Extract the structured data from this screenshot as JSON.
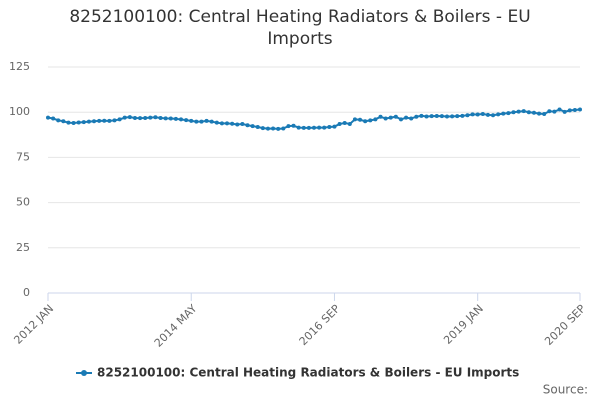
{
  "chart_data": {
    "type": "line",
    "title": "8252100100: Central Heating Radiators & Boilers - EU Imports",
    "source": "Source:",
    "categories": [
      "2012 JAN",
      null,
      null,
      null,
      null,
      null,
      null,
      null,
      null,
      null,
      null,
      null,
      null,
      null,
      null,
      null,
      null,
      null,
      null,
      null,
      null,
      null,
      null,
      null,
      null,
      null,
      null,
      null,
      "2014 MAY",
      null,
      null,
      null,
      null,
      null,
      null,
      null,
      null,
      null,
      null,
      null,
      null,
      null,
      null,
      null,
      null,
      null,
      null,
      null,
      null,
      null,
      null,
      null,
      null,
      null,
      null,
      null,
      "2016 SEP",
      null,
      null,
      null,
      null,
      null,
      null,
      null,
      null,
      null,
      null,
      null,
      null,
      null,
      null,
      null,
      null,
      null,
      null,
      null,
      null,
      null,
      null,
      null,
      null,
      null,
      null,
      null,
      "2019 JAN",
      null,
      null,
      null,
      null,
      null,
      null,
      null,
      null,
      null,
      null,
      null,
      null,
      null,
      null,
      null,
      null,
      null,
      null,
      null,
      "2020 SEP"
    ],
    "series": [
      {
        "name": "8252100100: Central Heating Radiators & Boilers - EU Imports",
        "color": "#1a7ab5",
        "values": [
          97,
          96.5,
          95.5,
          95,
          94.2,
          94,
          94.3,
          94.5,
          94.8,
          95,
          95.2,
          95.3,
          95.2,
          95.5,
          96,
          97,
          97.3,
          96.8,
          96.7,
          96.8,
          97,
          97.2,
          96.8,
          96.6,
          96.5,
          96.3,
          96,
          95.6,
          95.2,
          94.8,
          94.8,
          95.2,
          94.8,
          94.2,
          93.8,
          93.8,
          93.6,
          93.2,
          93.5,
          92.8,
          92.3,
          91.8,
          91.2,
          90.9,
          91,
          90.8,
          91,
          92.3,
          92.5,
          91.5,
          91.3,
          91.3,
          91.4,
          91.5,
          91.5,
          91.8,
          92,
          93.5,
          94,
          93.5,
          96,
          95.8,
          95,
          95.5,
          96,
          97.5,
          96.5,
          97,
          97.5,
          96,
          97,
          96.5,
          97.5,
          98,
          97.6,
          97.8,
          97.9,
          97.8,
          97.6,
          97.7,
          97.8,
          98,
          98.3,
          98.8,
          98.7,
          99,
          98.5,
          98.3,
          98.8,
          99.2,
          99.5,
          100,
          100.3,
          100.6,
          100,
          99.7,
          99.2,
          99,
          100.5,
          100.3,
          101.5,
          100.2,
          101,
          101.2,
          101.5
        ]
      }
    ],
    "ylim": [
      0,
      125
    ],
    "yticks": [
      0,
      25,
      50,
      75,
      100,
      125
    ],
    "grid": true,
    "legend": "bottom"
  }
}
